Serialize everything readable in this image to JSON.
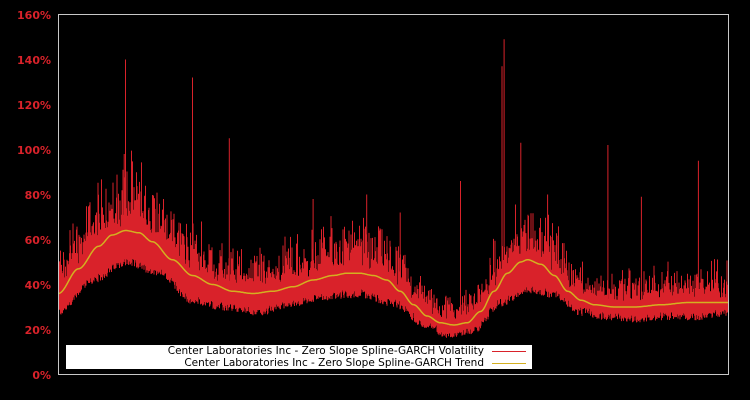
{
  "chart_data": {
    "type": "line",
    "title": "",
    "xlabel": "",
    "ylabel": "",
    "ylim": [
      0,
      160
    ],
    "y_ticks": [
      "0%",
      "20%",
      "40%",
      "60%",
      "80%",
      "100%",
      "120%",
      "140%",
      "160%"
    ],
    "x_ticks": [],
    "grid": false,
    "legend_position": "lower-left (inside plot)",
    "background": "#000000",
    "frame_color": "#c8c8c8",
    "series": [
      {
        "name": "Center Laboratories Inc - Zero Slope Spline-GARCH Volatility",
        "color": "#d9222a",
        "style": "dense noisy line with spikes",
        "approx_baseline_pct": [
          [
            0,
            28
          ],
          [
            0.05,
            42
          ],
          [
            0.1,
            50
          ],
          [
            0.15,
            46
          ],
          [
            0.2,
            33
          ],
          [
            0.25,
            30
          ],
          [
            0.3,
            28
          ],
          [
            0.35,
            32
          ],
          [
            0.4,
            35
          ],
          [
            0.45,
            36
          ],
          [
            0.5,
            32
          ],
          [
            0.55,
            22
          ],
          [
            0.58,
            18
          ],
          [
            0.62,
            20
          ],
          [
            0.66,
            32
          ],
          [
            0.7,
            38
          ],
          [
            0.74,
            36
          ],
          [
            0.78,
            28
          ],
          [
            0.82,
            26
          ],
          [
            0.86,
            25
          ],
          [
            0.9,
            26
          ],
          [
            0.95,
            26
          ],
          [
            1.0,
            28
          ]
        ],
        "spikes_pct": [
          [
            0.098,
            98
          ],
          [
            0.1,
            140
          ],
          [
            0.2,
            132
          ],
          [
            0.255,
            105
          ],
          [
            0.665,
            149
          ],
          [
            0.662,
            137
          ],
          [
            0.69,
            103
          ],
          [
            0.82,
            102
          ],
          [
            0.955,
            95
          ],
          [
            0.73,
            80
          ],
          [
            0.46,
            80
          ],
          [
            0.38,
            78
          ],
          [
            0.51,
            72
          ],
          [
            0.6,
            86
          ],
          [
            0.87,
            79
          ]
        ]
      },
      {
        "name": "Center Laboratories Inc - Zero Slope Spline-GARCH Trend",
        "color": "#d4b020",
        "style": "smooth line",
        "points_pct": [
          [
            0,
            36
          ],
          [
            0.03,
            47
          ],
          [
            0.06,
            57
          ],
          [
            0.08,
            62
          ],
          [
            0.1,
            64
          ],
          [
            0.12,
            63
          ],
          [
            0.14,
            59
          ],
          [
            0.17,
            51
          ],
          [
            0.2,
            44
          ],
          [
            0.23,
            40
          ],
          [
            0.26,
            37
          ],
          [
            0.29,
            36
          ],
          [
            0.32,
            37
          ],
          [
            0.35,
            39
          ],
          [
            0.38,
            42
          ],
          [
            0.41,
            44
          ],
          [
            0.43,
            45
          ],
          [
            0.45,
            45
          ],
          [
            0.47,
            44
          ],
          [
            0.49,
            42
          ],
          [
            0.51,
            37
          ],
          [
            0.53,
            31
          ],
          [
            0.55,
            26
          ],
          [
            0.57,
            23
          ],
          [
            0.59,
            22
          ],
          [
            0.61,
            23
          ],
          [
            0.63,
            28
          ],
          [
            0.65,
            37
          ],
          [
            0.67,
            45
          ],
          [
            0.69,
            50
          ],
          [
            0.7,
            51
          ],
          [
            0.72,
            49
          ],
          [
            0.74,
            44
          ],
          [
            0.76,
            37
          ],
          [
            0.78,
            33
          ],
          [
            0.8,
            31
          ],
          [
            0.83,
            30
          ],
          [
            0.86,
            30
          ],
          [
            0.9,
            31
          ],
          [
            0.94,
            32
          ],
          [
            0.97,
            32
          ],
          [
            1.0,
            32
          ]
        ]
      }
    ]
  },
  "legend": {
    "items": [
      {
        "label": "Center Laboratories Inc - Zero Slope Spline-GARCH Volatility",
        "color": "#d9222a"
      },
      {
        "label": "Center Laboratories Inc - Zero Slope Spline-GARCH Trend",
        "color": "#d4b020"
      }
    ]
  }
}
